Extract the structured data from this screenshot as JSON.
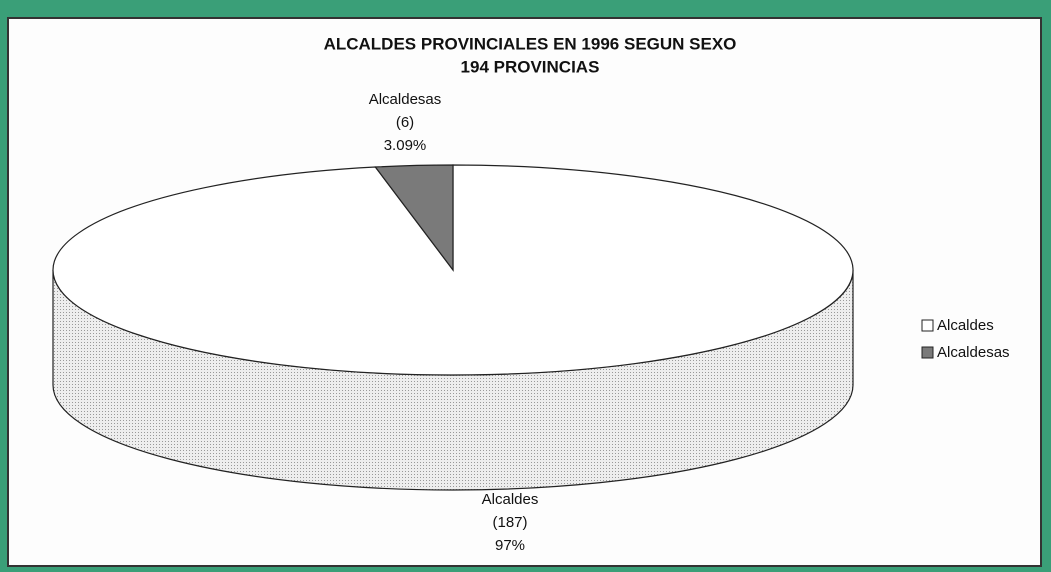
{
  "chart_data": {
    "type": "pie3d",
    "title": "ALCALDES PROVINCIALES EN 1996 SEGUN SEXO",
    "subtitle": "194 PROVINCIAS",
    "categories": [
      "Alcaldes",
      "Alcaldesas"
    ],
    "values": [
      187,
      6
    ],
    "value_labels": [
      "(187)",
      "(6)"
    ],
    "percentages": [
      97,
      3.09
    ],
    "percentage_labels": [
      "97%",
      "3.09%"
    ],
    "colors": [
      "#ffffff",
      "#7a7a7a"
    ],
    "legend": "right"
  }
}
